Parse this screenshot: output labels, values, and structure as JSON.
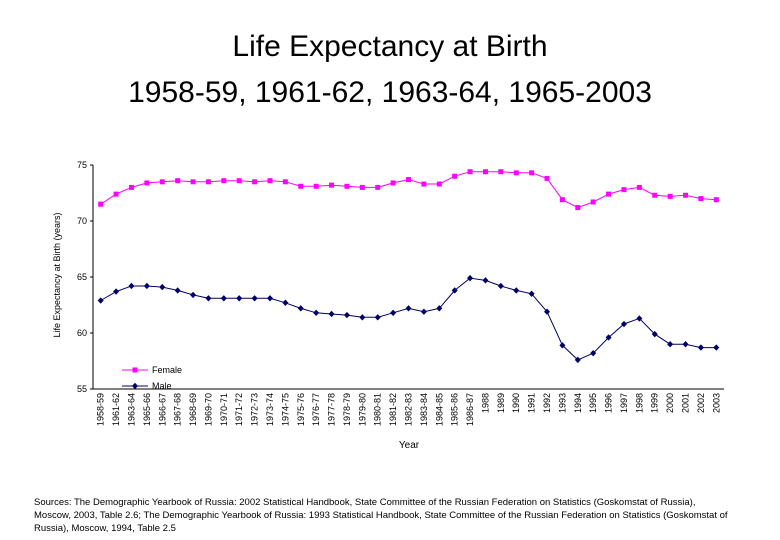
{
  "slide": {
    "title_line1": "Life Expectancy at Birth",
    "title_line2": "1958-59, 1961-62, 1963-64, 1965-2003",
    "source": "Sources: The Demographic Yearbook of Russia: 2002 Statistical Handbook, State Committee of the Russian Federation on Statistics (Goskomstat of Russia), Moscow, 2003, Table 2.6; The Demographic Yearbook of Russia: 1993 Statistical Handbook, State Committee of the Russian Federation on Statistics (Goskomstat of Russia), Moscow, 1994, Table 2.5"
  },
  "chart_data": {
    "type": "line",
    "title": "",
    "xlabel": "Year",
    "ylabel": "Life Expectancy at Birth (years)",
    "ylim": [
      55,
      75
    ],
    "yticks": [
      55,
      60,
      65,
      70,
      75
    ],
    "grid": false,
    "legend_position": "lower-left inside plot",
    "categories": [
      "1958-59",
      "1961-62",
      "1963-64",
      "1965-66",
      "1966-67",
      "1967-68",
      "1968-69",
      "1969-70",
      "1970-71",
      "1971-72",
      "1972-73",
      "1973-74",
      "1974-75",
      "1975-76",
      "1976-77",
      "1977-78",
      "1978-79",
      "1979-80",
      "1980-81",
      "1981-82",
      "1982-83",
      "1983-84",
      "1984-85",
      "1985-86",
      "1986-87",
      "1988",
      "1989",
      "1990",
      "1991",
      "1992",
      "1993",
      "1994",
      "1995",
      "1996",
      "1997",
      "1998",
      "1999",
      "2000",
      "2001",
      "2002",
      "2003"
    ],
    "series": [
      {
        "name": "Female",
        "color": "#ff00ff",
        "marker": "square",
        "values": [
          71.5,
          72.4,
          73.0,
          73.4,
          73.5,
          73.6,
          73.5,
          73.5,
          73.6,
          73.6,
          73.5,
          73.6,
          73.5,
          73.1,
          73.1,
          73.2,
          73.1,
          73.0,
          73.0,
          73.4,
          73.7,
          73.3,
          73.3,
          74.0,
          74.4,
          74.4,
          74.4,
          74.3,
          74.3,
          73.8,
          71.9,
          71.2,
          71.7,
          72.4,
          72.8,
          73.0,
          72.3,
          72.2,
          72.3,
          72.0,
          71.9
        ]
      },
      {
        "name": "Male",
        "color": "#000066",
        "marker": "diamond",
        "values": [
          62.9,
          63.7,
          64.2,
          64.2,
          64.1,
          63.8,
          63.4,
          63.1,
          63.1,
          63.1,
          63.1,
          63.1,
          62.7,
          62.2,
          61.8,
          61.7,
          61.6,
          61.4,
          61.4,
          61.8,
          62.2,
          61.9,
          62.2,
          63.8,
          64.9,
          64.7,
          64.2,
          63.8,
          63.5,
          61.9,
          58.9,
          57.6,
          58.2,
          59.6,
          60.8,
          61.3,
          59.9,
          59.0,
          59.0,
          58.7,
          58.7
        ]
      }
    ]
  }
}
